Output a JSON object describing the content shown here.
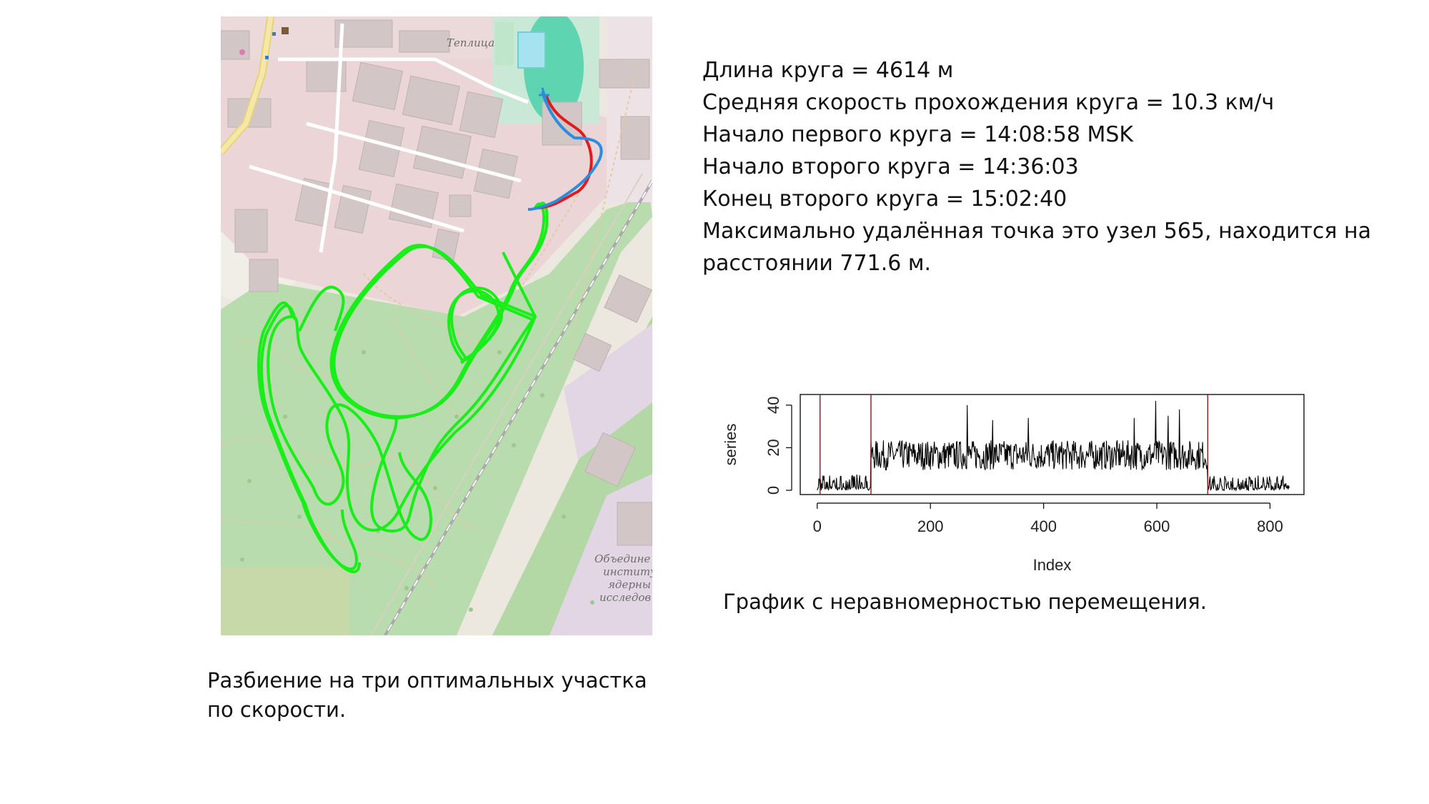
{
  "map": {
    "labels": {
      "top": "Теплица",
      "inst1": "Объедине",
      "inst2": "институ",
      "inst3": "ядерны",
      "inst4": "исследов"
    },
    "colors": {
      "route_full": "#18ee18",
      "route_start_red": "#e31a1a",
      "route_start_blue": "#2a8de0",
      "forest": "#b9dcae",
      "industrial": "#ebd4d6",
      "residential": "#e2d6e4",
      "stadium": "#5fd4b0"
    }
  },
  "map_caption": {
    "line1": "Разбиение на три оптимальных участка",
    "line2": "по скорости."
  },
  "info": {
    "lines": [
      "Длина круга = 4614 м",
      "Средняя скорость прохождения круга = 10.3 км/ч",
      "Начало первого круга = 14:08:58 MSK",
      "Начало второго круга = 14:36:03",
      "Конец второго круга = 15:02:40",
      "Максимально удалённая точка это узел 565, находится на",
      "расстоянии 771.6 м."
    ]
  },
  "chart_caption": "График с неравномерностью перемещения.",
  "chart_data": {
    "type": "line",
    "xlabel": "Index",
    "ylabel": "series",
    "xlim": [
      -30,
      860
    ],
    "ylim": [
      -2,
      45
    ],
    "x_ticks": [
      0,
      200,
      400,
      600,
      800
    ],
    "x_tick_labels": [
      "0",
      "200",
      "400",
      "600",
      "800"
    ],
    "y_ticks": [
      0,
      20,
      40
    ],
    "y_tick_labels": [
      "0",
      "20",
      "40"
    ],
    "vertical_lines": [
      5,
      95,
      690
    ],
    "vertical_line_color": "#8b1a1a",
    "line_color": "#000000",
    "n_points": 835,
    "segments": [
      {
        "from": 0,
        "to": 95,
        "mean": 3.5,
        "spread": 4
      },
      {
        "from": 95,
        "to": 690,
        "mean": 16.5,
        "spread": 7
      },
      {
        "from": 690,
        "to": 835,
        "mean": 3,
        "spread": 4
      }
    ],
    "peaks": [
      {
        "x": 265,
        "y": 40
      },
      {
        "x": 310,
        "y": 33
      },
      {
        "x": 373,
        "y": 34
      },
      {
        "x": 598,
        "y": 42
      },
      {
        "x": 620,
        "y": 35
      },
      {
        "x": 640,
        "y": 38
      },
      {
        "x": 560,
        "y": 34
      }
    ]
  }
}
